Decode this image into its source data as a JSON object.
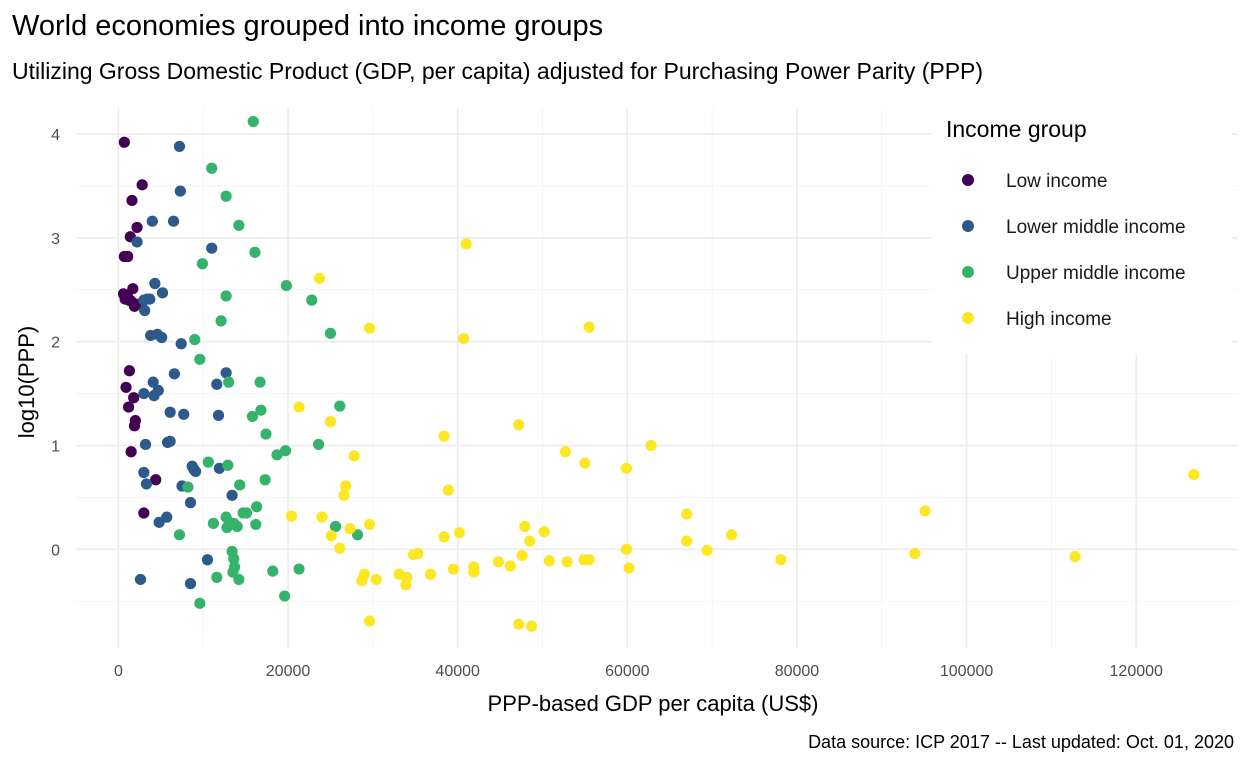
{
  "chart_data": {
    "type": "scatter",
    "title": "World economies grouped into income groups",
    "subtitle": "Utilizing Gross Domestic Product (GDP, per capita) adjusted for Purchasing Power Parity (PPP)",
    "caption": "Data source: ICP 2017 -- Last updated: Oct. 01, 2020",
    "xlabel": "PPP-based GDP per capita (US$)",
    "ylabel": "log10(PPP)",
    "xlim": [
      -5000,
      132000
    ],
    "ylim": [
      -0.95,
      4.25
    ],
    "x_ticks": [
      0,
      20000,
      40000,
      60000,
      80000,
      100000,
      120000
    ],
    "x_tick_labels": [
      "0",
      "20000",
      "40000",
      "60000",
      "80000",
      "100000",
      "120000"
    ],
    "y_ticks": [
      0,
      1,
      2,
      3,
      4
    ],
    "y_tick_labels": [
      "0",
      "1",
      "2",
      "3",
      "4"
    ],
    "grid": true,
    "legend": {
      "title": "Income group",
      "position": "top-right"
    },
    "series": [
      {
        "name": "Low income",
        "color": "#440154",
        "points": [
          [
            700,
            3.92
          ],
          [
            2800,
            3.51
          ],
          [
            1600,
            3.36
          ],
          [
            2200,
            3.1
          ],
          [
            1400,
            3.01
          ],
          [
            700,
            2.82
          ],
          [
            1100,
            2.82
          ],
          [
            1700,
            2.51
          ],
          [
            600,
            2.46
          ],
          [
            1100,
            2.43
          ],
          [
            800,
            2.41
          ],
          [
            1500,
            2.39
          ],
          [
            1900,
            2.34
          ],
          [
            1200,
            2.4
          ],
          [
            1000,
            2.44
          ],
          [
            2100,
            2.36
          ],
          [
            1300,
            1.72
          ],
          [
            900,
            1.56
          ],
          [
            1800,
            1.46
          ],
          [
            1200,
            1.37
          ],
          [
            2000,
            1.24
          ],
          [
            1900,
            1.19
          ],
          [
            1500,
            0.94
          ],
          [
            4400,
            0.67
          ],
          [
            3000,
            0.35
          ]
        ]
      },
      {
        "name": "Lower middle income",
        "color": "#2c5a8a",
        "points": [
          [
            7200,
            3.88
          ],
          [
            7300,
            3.45
          ],
          [
            4000,
            3.16
          ],
          [
            6500,
            3.16
          ],
          [
            2200,
            2.96
          ],
          [
            11000,
            2.9
          ],
          [
            4300,
            2.56
          ],
          [
            5200,
            2.47
          ],
          [
            3000,
            2.4
          ],
          [
            3400,
            2.41
          ],
          [
            3700,
            2.41
          ],
          [
            3100,
            2.3
          ],
          [
            3800,
            2.06
          ],
          [
            4600,
            2.07
          ],
          [
            5100,
            2.04
          ],
          [
            7400,
            1.98
          ],
          [
            6600,
            1.69
          ],
          [
            12700,
            1.7
          ],
          [
            4100,
            1.61
          ],
          [
            11600,
            1.59
          ],
          [
            3000,
            1.5
          ],
          [
            4700,
            1.53
          ],
          [
            4200,
            1.48
          ],
          [
            6100,
            1.32
          ],
          [
            7700,
            1.3
          ],
          [
            11800,
            1.29
          ],
          [
            5800,
            1.03
          ],
          [
            6100,
            1.04
          ],
          [
            3200,
            1.01
          ],
          [
            8700,
            0.8
          ],
          [
            11900,
            0.78
          ],
          [
            8900,
            0.77
          ],
          [
            9100,
            0.75
          ],
          [
            3000,
            0.74
          ],
          [
            3300,
            0.63
          ],
          [
            7500,
            0.61
          ],
          [
            13400,
            0.52
          ],
          [
            8500,
            0.45
          ],
          [
            5700,
            0.31
          ],
          [
            4800,
            0.26
          ],
          [
            10500,
            -0.1
          ],
          [
            2600,
            -0.29
          ],
          [
            8500,
            -0.33
          ]
        ]
      },
      {
        "name": "Upper middle income",
        "color": "#35b36b",
        "points": [
          [
            15900,
            4.12
          ],
          [
            11000,
            3.67
          ],
          [
            12700,
            3.4
          ],
          [
            14200,
            3.12
          ],
          [
            16100,
            2.86
          ],
          [
            9900,
            2.75
          ],
          [
            19800,
            2.54
          ],
          [
            12700,
            2.44
          ],
          [
            22800,
            2.4
          ],
          [
            12100,
            2.2
          ],
          [
            25000,
            2.08
          ],
          [
            9000,
            2.02
          ],
          [
            9600,
            1.83
          ],
          [
            13000,
            1.61
          ],
          [
            16700,
            1.61
          ],
          [
            26100,
            1.38
          ],
          [
            16800,
            1.34
          ],
          [
            15800,
            1.28
          ],
          [
            17400,
            1.11
          ],
          [
            23600,
            1.01
          ],
          [
            19700,
            0.95
          ],
          [
            18700,
            0.91
          ],
          [
            10600,
            0.84
          ],
          [
            12900,
            0.81
          ],
          [
            17300,
            0.67
          ],
          [
            14300,
            0.62
          ],
          [
            8200,
            0.6
          ],
          [
            16300,
            0.41
          ],
          [
            14700,
            0.35
          ],
          [
            15100,
            0.35
          ],
          [
            12700,
            0.31
          ],
          [
            11200,
            0.25
          ],
          [
            13600,
            0.25
          ],
          [
            12800,
            0.21
          ],
          [
            14000,
            0.22
          ],
          [
            16200,
            0.24
          ],
          [
            7200,
            0.14
          ],
          [
            25600,
            0.22
          ],
          [
            28200,
            0.14
          ],
          [
            13400,
            -0.02
          ],
          [
            13600,
            -0.09
          ],
          [
            13700,
            -0.17
          ],
          [
            18200,
            -0.21
          ],
          [
            21300,
            -0.19
          ],
          [
            13500,
            -0.22
          ],
          [
            11600,
            -0.27
          ],
          [
            14200,
            -0.29
          ],
          [
            19600,
            -0.45
          ],
          [
            9600,
            -0.52
          ]
        ]
      },
      {
        "name": "High income",
        "color": "#fde725",
        "points": [
          [
            41000,
            2.94
          ],
          [
            23700,
            2.61
          ],
          [
            29600,
            2.13
          ],
          [
            55500,
            2.14
          ],
          [
            40700,
            2.03
          ],
          [
            21300,
            1.37
          ],
          [
            25000,
            1.23
          ],
          [
            47200,
            1.2
          ],
          [
            38400,
            1.09
          ],
          [
            62800,
            1.0
          ],
          [
            52700,
            0.94
          ],
          [
            27800,
            0.9
          ],
          [
            55000,
            0.83
          ],
          [
            59900,
            0.78
          ],
          [
            26800,
            0.61
          ],
          [
            38900,
            0.57
          ],
          [
            26600,
            0.52
          ],
          [
            95100,
            0.37
          ],
          [
            67000,
            0.34
          ],
          [
            20400,
            0.32
          ],
          [
            24000,
            0.31
          ],
          [
            29600,
            0.24
          ],
          [
            47900,
            0.22
          ],
          [
            27300,
            0.2
          ],
          [
            40200,
            0.16
          ],
          [
            50200,
            0.17
          ],
          [
            25100,
            0.13
          ],
          [
            38400,
            0.12
          ],
          [
            72300,
            0.14
          ],
          [
            48500,
            0.08
          ],
          [
            67000,
            0.08
          ],
          [
            26100,
            0.01
          ],
          [
            34800,
            -0.05
          ],
          [
            35300,
            -0.04
          ],
          [
            59900,
            0.0
          ],
          [
            69400,
            -0.01
          ],
          [
            47600,
            -0.06
          ],
          [
            93900,
            -0.04
          ],
          [
            44800,
            -0.12
          ],
          [
            46200,
            -0.16
          ],
          [
            50800,
            -0.11
          ],
          [
            52900,
            -0.12
          ],
          [
            54900,
            -0.1
          ],
          [
            55500,
            -0.1
          ],
          [
            60200,
            -0.18
          ],
          [
            78100,
            -0.1
          ],
          [
            112800,
            -0.07
          ],
          [
            126800,
            0.72
          ],
          [
            41900,
            -0.17
          ],
          [
            36800,
            -0.24
          ],
          [
            39500,
            -0.19
          ],
          [
            41900,
            -0.22
          ],
          [
            33100,
            -0.24
          ],
          [
            29000,
            -0.24
          ],
          [
            34000,
            -0.27
          ],
          [
            28700,
            -0.3
          ],
          [
            30400,
            -0.29
          ],
          [
            33900,
            -0.34
          ],
          [
            29600,
            -0.69
          ],
          [
            47200,
            -0.72
          ],
          [
            48700,
            -0.74
          ]
        ]
      }
    ]
  }
}
